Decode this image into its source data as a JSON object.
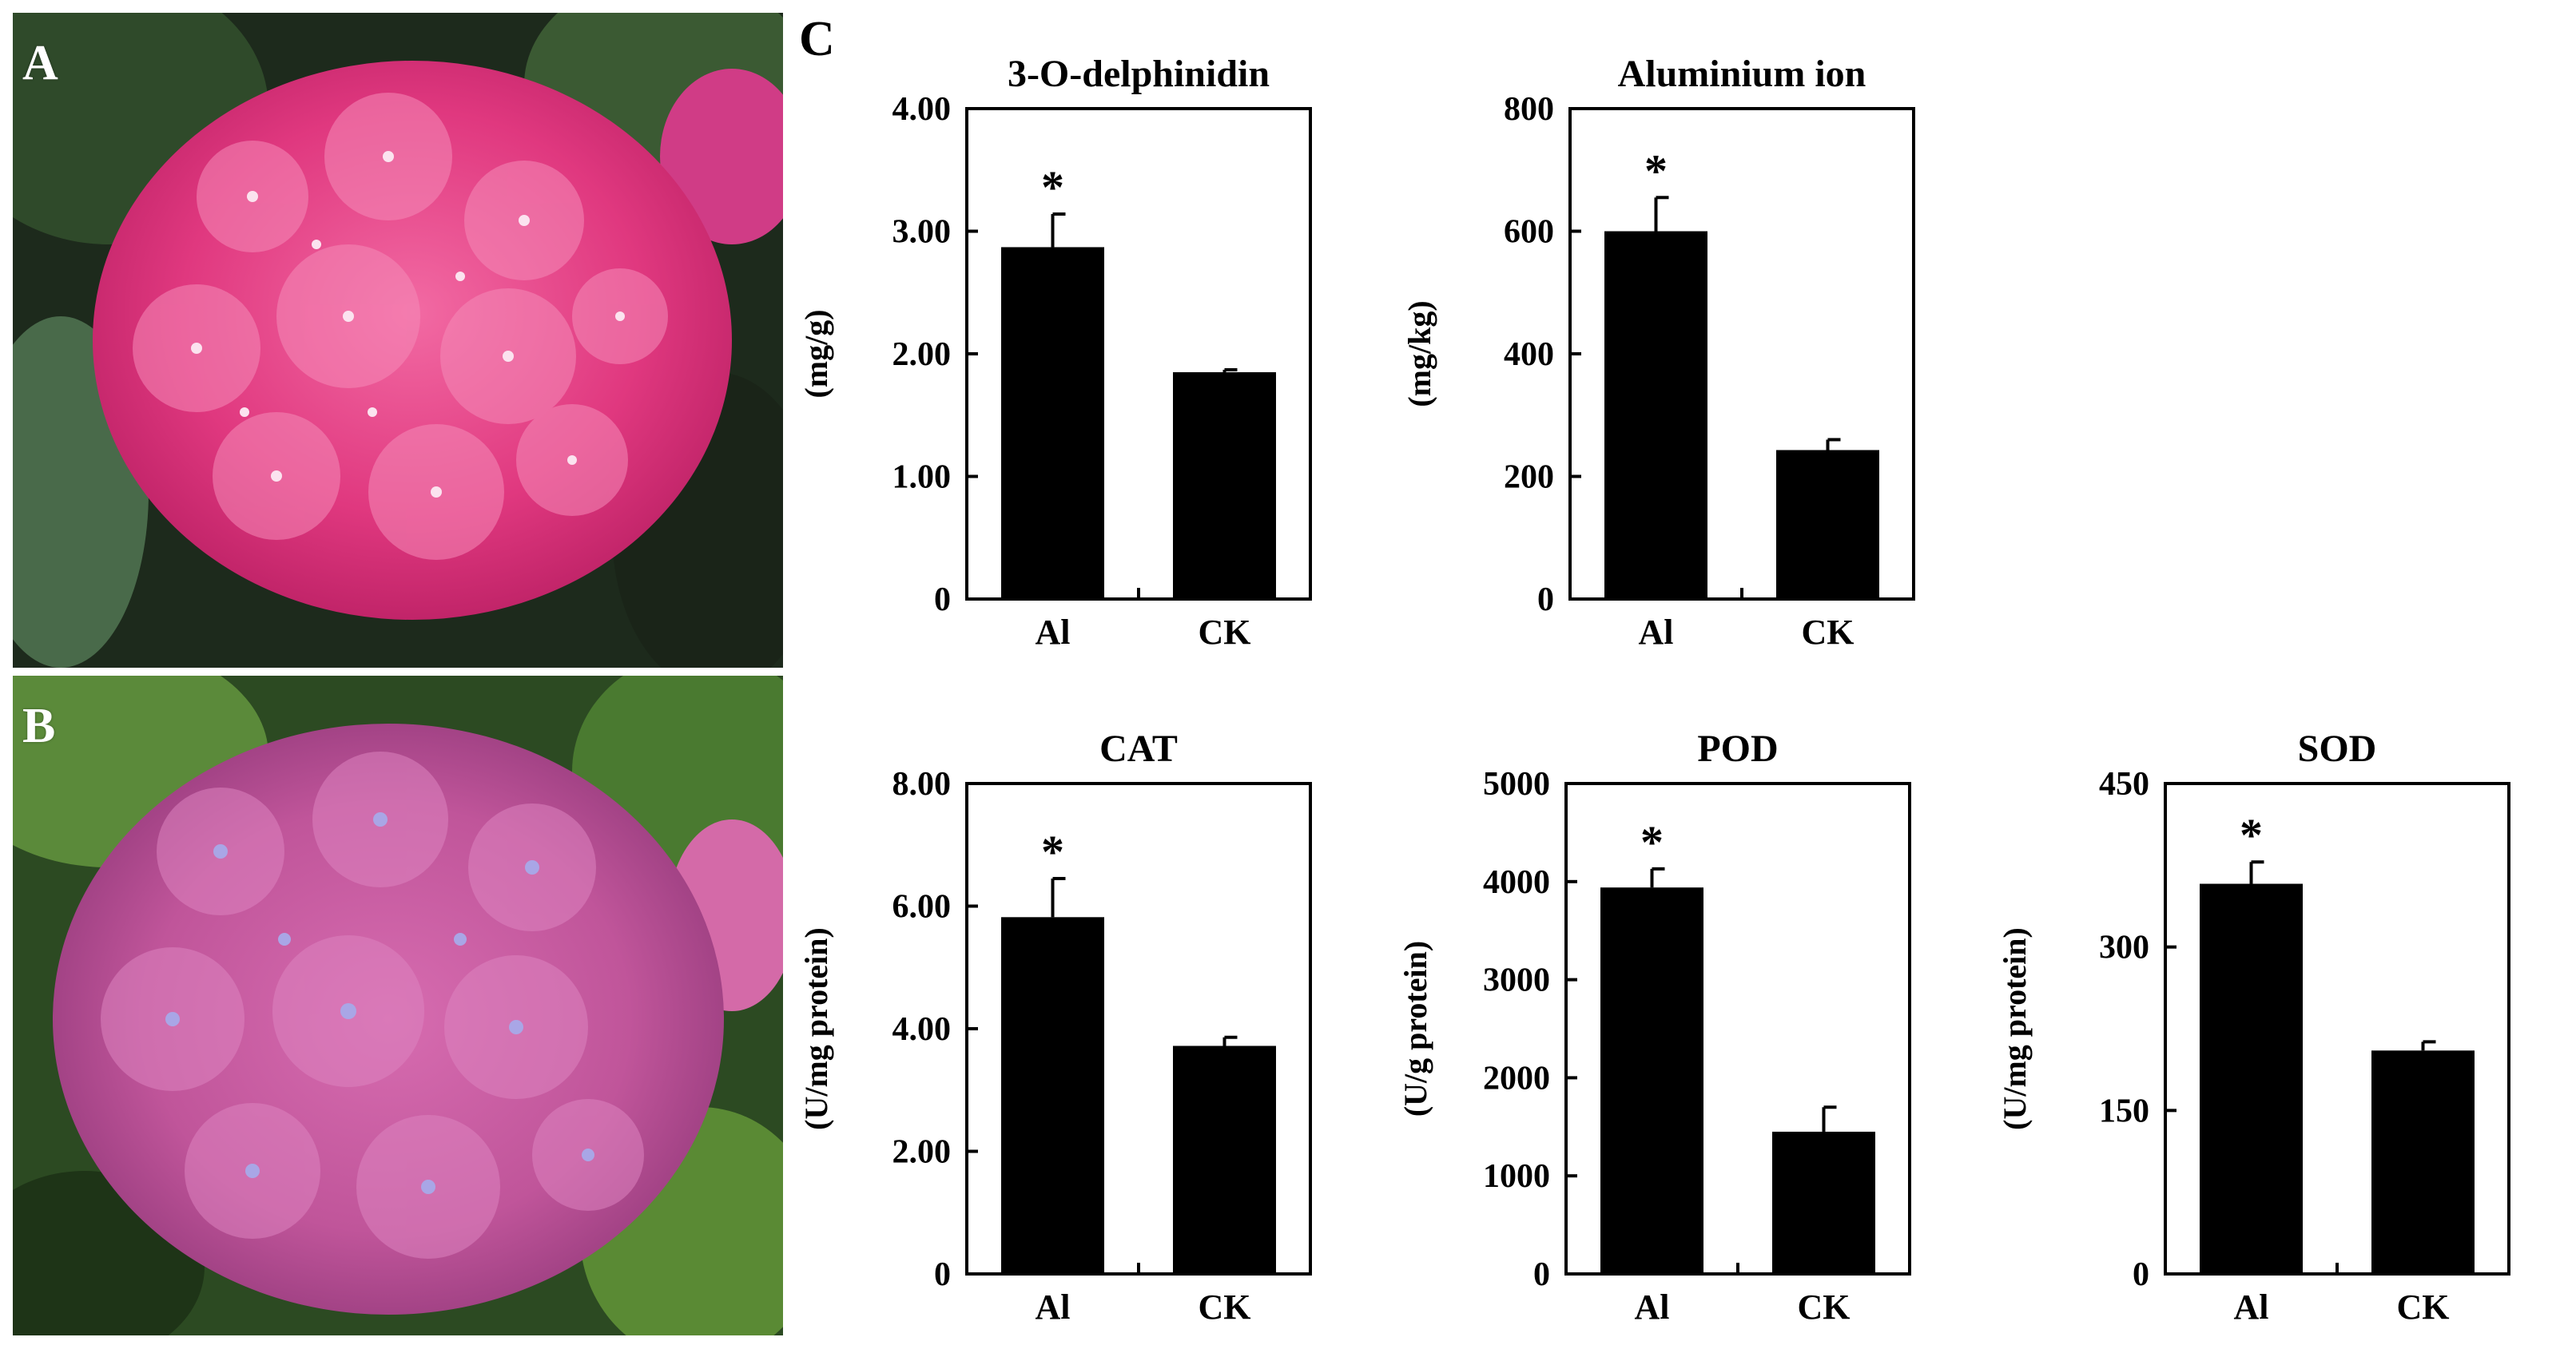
{
  "panels": {
    "a": {
      "label": "A",
      "photo": "pink-hydrangea-flower-head"
    },
    "b": {
      "label": "B",
      "photo": "purple-hydrangea-flower-head"
    },
    "c": {
      "label": "C"
    }
  },
  "colors": {
    "bar": "#000000",
    "pink_flower": "#e0387f",
    "purple_flower": "#c0559a",
    "leaf": "#2f4a2a"
  },
  "chart_data": [
    {
      "id": "delphinidin",
      "type": "bar",
      "title": "3-O-delphinidin",
      "ylabel": "(mg/g)",
      "xlabel": "",
      "categories": [
        "Al",
        "CK"
      ],
      "values": [
        2.87,
        1.85
      ],
      "errors": [
        0.27,
        0.02
      ],
      "significance": [
        "*",
        ""
      ],
      "ylim": [
        0,
        4
      ],
      "yticks": [
        0,
        1,
        2,
        3,
        4
      ],
      "ytick_labels": [
        "0",
        "1.00",
        "2.00",
        "3.00",
        "4.00"
      ],
      "grid": false,
      "legend": "none"
    },
    {
      "id": "aluminium",
      "type": "bar",
      "title": "Aluminium ion",
      "ylabel": "(mg/kg)",
      "xlabel": "",
      "categories": [
        "Al",
        "CK"
      ],
      "values": [
        600,
        243
      ],
      "errors": [
        55,
        17
      ],
      "significance": [
        "*",
        ""
      ],
      "ylim": [
        0,
        800
      ],
      "yticks": [
        0,
        200,
        400,
        600,
        800
      ],
      "ytick_labels": [
        "0",
        "200",
        "400",
        "600",
        "800"
      ],
      "grid": false,
      "legend": "none"
    },
    {
      "id": "cat",
      "type": "bar",
      "title": "CAT",
      "ylabel": "(U/mg protein)",
      "xlabel": "",
      "categories": [
        "Al",
        "CK"
      ],
      "values": [
        5.82,
        3.72
      ],
      "errors": [
        0.63,
        0.14
      ],
      "significance": [
        "*",
        ""
      ],
      "ylim": [
        0,
        8
      ],
      "yticks": [
        0,
        2,
        4,
        6,
        8
      ],
      "ytick_labels": [
        "0",
        "2.00",
        "4.00",
        "6.00",
        "8.00"
      ],
      "grid": false,
      "legend": "none"
    },
    {
      "id": "pod",
      "type": "bar",
      "title": "POD",
      "ylabel": "(U/g protein)",
      "xlabel": "",
      "categories": [
        "Al",
        "CK"
      ],
      "values": [
        3940,
        1450
      ],
      "errors": [
        190,
        250
      ],
      "significance": [
        "*",
        ""
      ],
      "ylim": [
        0,
        5000
      ],
      "yticks": [
        0,
        1000,
        2000,
        3000,
        4000,
        5000
      ],
      "ytick_labels": [
        "0",
        "1000",
        "2000",
        "3000",
        "4000",
        "5000"
      ],
      "grid": false,
      "legend": "none"
    },
    {
      "id": "sod",
      "type": "bar",
      "title": "SOD",
      "ylabel": "(U/mg protein)",
      "xlabel": "",
      "categories": [
        "Al",
        "CK"
      ],
      "values": [
        358,
        205
      ],
      "errors": [
        20,
        8
      ],
      "significance": [
        "*",
        ""
      ],
      "ylim": [
        0,
        450
      ],
      "yticks": [
        0,
        150,
        300,
        450
      ],
      "ytick_labels": [
        "0",
        "150",
        "300",
        "450"
      ],
      "grid": false,
      "legend": "none"
    }
  ]
}
